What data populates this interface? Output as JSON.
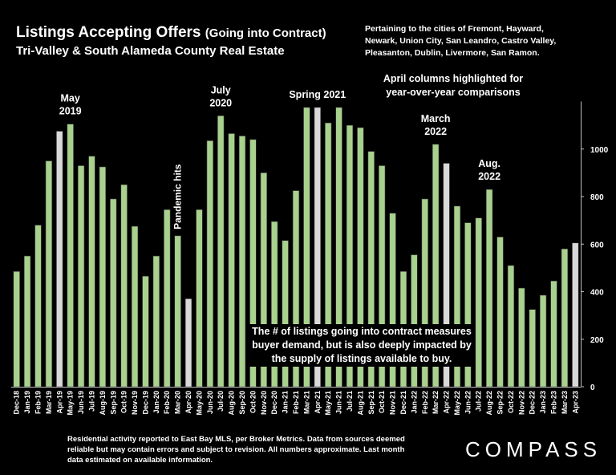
{
  "header": {
    "title_main": "Listings Accepting Offers",
    "title_sub": "(Going into Contract)",
    "subtitle": "Tri-Valley & South Alameda County Real Estate",
    "cities_note": "Pertaining to the cities of Fremont, Hayward, Newark, Union City, San Leandro, Castro Valley, Pleasanton, Dublin, Livermore, San Ramon.",
    "april_note": "April columns highlighted for year-over-year comparisons"
  },
  "callout": "The # of listings going into contract measures buyer demand, but is also deeply impacted by the supply of listings available to buy.",
  "footer": {
    "note": "Residential activity reported to East Bay MLS, per Broker Metrics. Data from sources deemed reliable but may contain errors and subject to revision. All numbers approximate. Last month data estimated on available information.",
    "logo": "COMPASS"
  },
  "colors": {
    "bar": "#a9d18e",
    "highlight": "#d9d9d9",
    "background": "#000000",
    "text": "#ffffff"
  },
  "chart_data": {
    "type": "bar",
    "title": "Listings Accepting Offers (Going into Contract)",
    "ylim": [
      0,
      1200
    ],
    "yticks": [
      0,
      200,
      400,
      600,
      800,
      1000
    ],
    "grid": false,
    "categories": [
      "Dec-18",
      "Jan-19",
      "Feb-19",
      "Mar-19",
      "Apr-19",
      "May-19",
      "Jun-19",
      "Jul-19",
      "Aug-19",
      "Sep-19",
      "Oct-19",
      "Nov-19",
      "Dec-19",
      "Jan-20",
      "Feb-20",
      "Mar-20",
      "Apr-20",
      "May-20",
      "Jun-20",
      "Jul-20",
      "Aug-20",
      "Sep-20",
      "Oct-20",
      "Nov-20",
      "Dec-20",
      "Jan-21",
      "Feb-21",
      "Mar-21",
      "Apr-21",
      "May-21",
      "Jun-21",
      "Jul-21",
      "Aug-21",
      "Sep-21",
      "Oct-21",
      "Nov-21",
      "Dec-21",
      "Jan-22",
      "Feb-22",
      "Mar-22",
      "Apr-22",
      "May-22",
      "Jun-22",
      "Jul-22",
      "Aug-22",
      "Sep-22",
      "Oct-22",
      "Nov-22",
      "Dec-22",
      "Jan-23",
      "Feb-23",
      "Mar-23",
      "Apr-23"
    ],
    "values": [
      485,
      550,
      680,
      950,
      1075,
      1105,
      930,
      970,
      925,
      790,
      850,
      675,
      465,
      550,
      745,
      635,
      370,
      745,
      1035,
      1140,
      1065,
      1055,
      1040,
      900,
      695,
      615,
      825,
      1175,
      1175,
      1110,
      1175,
      1100,
      1090,
      990,
      930,
      730,
      485,
      555,
      790,
      1020,
      940,
      760,
      690,
      710,
      830,
      630,
      510,
      415,
      325,
      385,
      445,
      580,
      605
    ],
    "highlighted": [
      "Apr-19",
      "Apr-20",
      "Apr-21",
      "Apr-22",
      "Apr-23"
    ],
    "annotations": [
      {
        "at": "May-19",
        "text": [
          "May",
          "2019"
        ]
      },
      {
        "at": "Mar-20",
        "text": [
          "Pandemic hits"
        ],
        "rotated": true
      },
      {
        "at": "Jul-20",
        "text": [
          "July",
          "2020"
        ]
      },
      {
        "at": "Apr-21",
        "text": [
          "Spring 2021"
        ]
      },
      {
        "at": "Mar-22",
        "text": [
          "March",
          "2022"
        ]
      },
      {
        "at": "Aug-22",
        "text": [
          "Aug.",
          "2022"
        ]
      }
    ]
  }
}
